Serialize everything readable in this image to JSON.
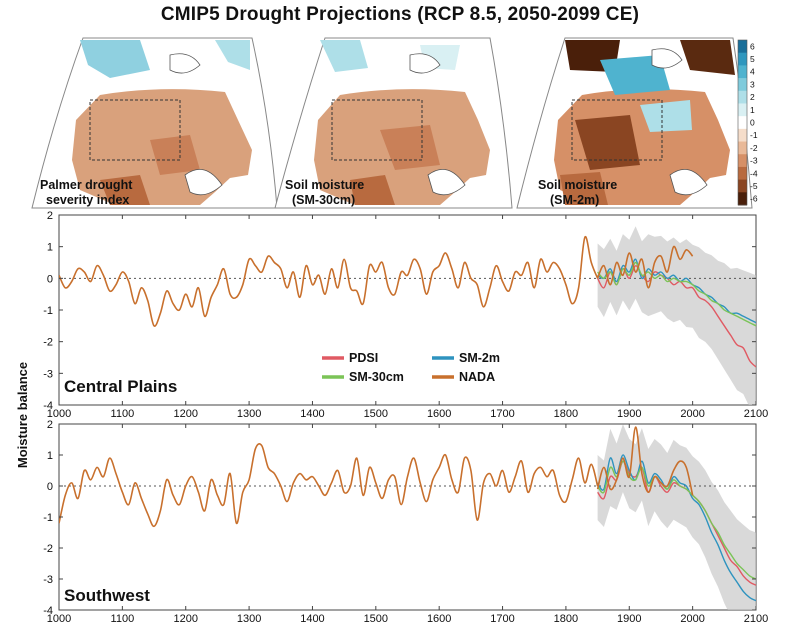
{
  "figure": {
    "title": "CMIP5 Drought Projections (RCP 8.5, 2050-2099 CE)"
  },
  "maps": {
    "panels": [
      {
        "label_line1": "Palmer drought",
        "label_line2": "severity index"
      },
      {
        "label_line1": "Soil moisture",
        "label_line2": "(SM-30cm)"
      },
      {
        "label_line1": "Soil moisture",
        "label_line2": "(SM-2m)"
      }
    ],
    "colorbar": {
      "ticks": [
        "6",
        "5",
        "4",
        "3",
        "2",
        "1",
        "0",
        "-1",
        "-2",
        "-3",
        "-4",
        "-5",
        "-6"
      ],
      "colors": [
        "#1a6f9a",
        "#2f97be",
        "#4fb3cf",
        "#7fcbdc",
        "#aedfe8",
        "#d9f0f3",
        "#ffffff",
        "#f5ddca",
        "#e9b998",
        "#d69067",
        "#b86a3f",
        "#8a4522",
        "#4a1f0a"
      ]
    }
  },
  "chart_data": [
    {
      "type": "line",
      "region_label": "Central Plains",
      "ylabel": "Moisture balance",
      "xlim": [
        1000,
        2100
      ],
      "ylim": [
        -4,
        2
      ],
      "xticks": [
        "1000",
        "1100",
        "1200",
        "1300",
        "1400",
        "1500",
        "1600",
        "1700",
        "1800",
        "1900",
        "2000",
        "2100"
      ],
      "yticks": [
        "2",
        "1",
        "0",
        "-1",
        "-2",
        "-3",
        "-4"
      ],
      "series": [
        {
          "name": "NADA",
          "color": "#c8702d",
          "x": [
            1000,
            1010,
            1020,
            1030,
            1040,
            1050,
            1060,
            1070,
            1080,
            1090,
            1100,
            1110,
            1120,
            1130,
            1140,
            1150,
            1160,
            1170,
            1180,
            1190,
            1200,
            1210,
            1220,
            1230,
            1240,
            1250,
            1260,
            1270,
            1280,
            1290,
            1300,
            1310,
            1320,
            1330,
            1340,
            1350,
            1360,
            1370,
            1380,
            1390,
            1400,
            1410,
            1420,
            1430,
            1440,
            1450,
            1460,
            1470,
            1480,
            1490,
            1500,
            1510,
            1520,
            1530,
            1540,
            1550,
            1560,
            1570,
            1580,
            1590,
            1600,
            1610,
            1620,
            1630,
            1640,
            1650,
            1660,
            1670,
            1680,
            1690,
            1700,
            1710,
            1720,
            1730,
            1740,
            1750,
            1760,
            1770,
            1780,
            1790,
            1800,
            1810,
            1820,
            1830,
            1840,
            1850
          ],
          "y": [
            0.1,
            -0.3,
            -0.1,
            0.3,
            0.2,
            -0.1,
            0.4,
            0.1,
            -0.4,
            -0.2,
            0.2,
            -0.1,
            -0.8,
            -0.3,
            -0.7,
            -1.5,
            -1.1,
            -0.4,
            -0.8,
            -1.0,
            -0.5,
            -0.9,
            -0.3,
            -1.2,
            -0.6,
            -0.2,
            0.3,
            -0.5,
            -0.6,
            -0.2,
            0.6,
            0.4,
            0.2,
            0.7,
            0.5,
            0.3,
            -0.3,
            0.2,
            -0.6,
            0.4,
            -0.2,
            0.1,
            -0.5,
            0.3,
            -0.3,
            0.6,
            -0.3,
            -0.4,
            -0.8,
            0.4,
            0.2,
            0.5,
            -0.3,
            -0.5,
            0.2,
            0.1,
            0.6,
            0.3,
            -0.5,
            0.2,
            0.4,
            0.8,
            0.3,
            -0.3,
            0.5,
            0.0,
            -0.2,
            -0.9,
            -0.3,
            0.4,
            -0.1,
            -0.4,
            0.2,
            0.1,
            0.5,
            -0.3,
            0.6,
            0.2,
            0.5,
            0.3,
            -0.2,
            -0.8,
            -0.3,
            1.3,
            0.5,
            0.0
          ]
        },
        {
          "name": "NADA (1850-2005)",
          "color": "#c8702d",
          "x": [
            1850,
            1860,
            1870,
            1880,
            1890,
            1900,
            1910,
            1920,
            1930,
            1940,
            1950,
            1960,
            1970,
            1980,
            1990,
            2000
          ],
          "y": [
            0.0,
            0.4,
            -0.2,
            0.5,
            0.1,
            0.8,
            0.2,
            0.6,
            -0.3,
            0.5,
            0.7,
            0.2,
            1.0,
            0.6,
            0.9,
            0.7
          ]
        },
        {
          "name": "PDSI",
          "color": "#e05a63",
          "x": [
            1850,
            1860,
            1870,
            1880,
            1890,
            1900,
            1910,
            1920,
            1930,
            1940,
            1950,
            1960,
            1970,
            1980,
            1990,
            2000,
            2010,
            2020,
            2030,
            2040,
            2050,
            2060,
            2070,
            2080,
            2090,
            2100
          ],
          "y": [
            0.0,
            -0.3,
            0.2,
            -0.2,
            0.3,
            0.0,
            0.4,
            0.1,
            -0.1,
            0.2,
            0.1,
            0.0,
            -0.2,
            -0.1,
            -0.3,
            -0.3,
            -0.6,
            -0.7,
            -0.9,
            -1.2,
            -1.5,
            -1.8,
            -2.1,
            -2.2,
            -2.6,
            -2.8
          ]
        },
        {
          "name": "SM-2m",
          "color": "#2e93bf",
          "x": [
            1850,
            1860,
            1870,
            1880,
            1890,
            1900,
            1910,
            1920,
            1930,
            1940,
            1950,
            1960,
            1970,
            1980,
            1990,
            2000,
            2010,
            2020,
            2030,
            2040,
            2050,
            2060,
            2070,
            2080,
            2090,
            2100
          ],
          "y": [
            0.1,
            0.0,
            0.3,
            -0.1,
            0.4,
            0.2,
            0.6,
            0.0,
            0.3,
            0.1,
            0.2,
            0.0,
            0.1,
            -0.1,
            0.0,
            -0.2,
            -0.3,
            -0.5,
            -0.6,
            -0.8,
            -0.9,
            -1.1,
            -1.1,
            -1.2,
            -1.3,
            -1.4
          ]
        },
        {
          "name": "SM-30cm",
          "color": "#7bc457",
          "x": [
            1850,
            1860,
            1870,
            1880,
            1890,
            1900,
            1910,
            1920,
            1930,
            1940,
            1950,
            1960,
            1970,
            1980,
            1990,
            2000,
            2010,
            2020,
            2030,
            2040,
            2050,
            2060,
            2070,
            2080,
            2090,
            2100
          ],
          "y": [
            0.2,
            0.0,
            0.2,
            -0.2,
            0.3,
            0.1,
            0.5,
            0.1,
            0.2,
            0.0,
            0.1,
            -0.1,
            0.0,
            -0.1,
            -0.1,
            -0.2,
            -0.4,
            -0.5,
            -0.7,
            -0.8,
            -1.0,
            -1.1,
            -1.2,
            -1.3,
            -1.4,
            -1.5
          ]
        }
      ],
      "legend": [
        {
          "name": "PDSI",
          "color": "#e05a63"
        },
        {
          "name": "SM-2m",
          "color": "#2e93bf"
        },
        {
          "name": "SM-30cm",
          "color": "#7bc457"
        },
        {
          "name": "NADA",
          "color": "#c8702d"
        }
      ]
    },
    {
      "type": "line",
      "region_label": "Southwest",
      "xlim": [
        1000,
        2100
      ],
      "ylim": [
        -4,
        2
      ],
      "xticks": [
        "1000",
        "1100",
        "1200",
        "1300",
        "1400",
        "1500",
        "1600",
        "1700",
        "1800",
        "1900",
        "2000",
        "2100"
      ],
      "yticks": [
        "2",
        "1",
        "0",
        "-1",
        "-2",
        "-3",
        "-4"
      ],
      "series": [
        {
          "name": "NADA",
          "color": "#c8702d",
          "x": [
            1000,
            1010,
            1020,
            1030,
            1040,
            1050,
            1060,
            1070,
            1080,
            1090,
            1100,
            1110,
            1120,
            1130,
            1140,
            1150,
            1160,
            1170,
            1180,
            1190,
            1200,
            1210,
            1220,
            1230,
            1240,
            1250,
            1260,
            1270,
            1280,
            1290,
            1300,
            1310,
            1320,
            1330,
            1340,
            1350,
            1360,
            1370,
            1380,
            1390,
            1400,
            1410,
            1420,
            1430,
            1440,
            1450,
            1460,
            1470,
            1480,
            1490,
            1500,
            1510,
            1520,
            1530,
            1540,
            1550,
            1560,
            1570,
            1580,
            1590,
            1600,
            1610,
            1620,
            1630,
            1640,
            1650,
            1660,
            1670,
            1680,
            1690,
            1700,
            1710,
            1720,
            1730,
            1740,
            1750,
            1760,
            1770,
            1780,
            1790,
            1800,
            1810,
            1820,
            1830,
            1840,
            1850
          ],
          "y": [
            -1.2,
            -0.3,
            0.1,
            -0.4,
            0.5,
            0.2,
            0.6,
            0.3,
            0.9,
            0.4,
            -0.2,
            -0.6,
            0.1,
            -0.4,
            -0.9,
            -1.3,
            -0.8,
            0.2,
            -0.3,
            -0.6,
            0.0,
            0.3,
            -0.2,
            -0.8,
            0.2,
            -0.3,
            -0.6,
            0.4,
            -1.2,
            -0.2,
            0.2,
            1.2,
            1.3,
            0.6,
            0.4,
            0.0,
            -0.5,
            0.1,
            0.4,
            0.2,
            0.3,
            0.0,
            -0.3,
            0.1,
            0.5,
            -0.2,
            0.0,
            0.9,
            -0.3,
            0.6,
            0.1,
            -0.4,
            0.2,
            0.3,
            -0.6,
            0.3,
            0.9,
            0.1,
            -0.5,
            0.2,
            0.6,
            1.0,
            0.2,
            -0.2,
            0.9,
            0.5,
            -1.1,
            0.1,
            0.4,
            0.0,
            0.5,
            -0.2,
            0.3,
            0.8,
            -0.2,
            0.4,
            0.6,
            0.3,
            0.5,
            -0.3,
            -0.5,
            0.2,
            0.9,
            0.1,
            0.7,
            0.0
          ]
        },
        {
          "name": "NADA (1850-2005)",
          "color": "#c8702d",
          "x": [
            1850,
            1860,
            1870,
            1880,
            1890,
            1900,
            1910,
            1920,
            1930,
            1940,
            1950,
            1960,
            1970,
            1980,
            1990,
            2000
          ],
          "y": [
            -0.1,
            0.6,
            -0.1,
            0.2,
            0.9,
            0.3,
            1.9,
            0.4,
            -0.2,
            0.3,
            0.1,
            0.0,
            0.5,
            0.8,
            0.6,
            -0.3
          ]
        },
        {
          "name": "PDSI",
          "color": "#e05a63",
          "x": [
            1850,
            1860,
            1870,
            1880,
            1890,
            1900,
            1910,
            1920,
            1930,
            1940,
            1950,
            1960,
            1970,
            1980,
            1990,
            2000,
            2010,
            2020,
            2030,
            2040,
            2050,
            2060,
            2070,
            2080,
            2090,
            2100
          ],
          "y": [
            -0.2,
            -0.4,
            0.3,
            0.2,
            0.8,
            0.4,
            0.3,
            0.6,
            -0.2,
            0.3,
            0.0,
            -0.2,
            0.1,
            0.0,
            -0.1,
            -0.3,
            -0.5,
            -0.8,
            -1.2,
            -1.6,
            -2.0,
            -2.4,
            -2.6,
            -2.9,
            -3.1,
            -3.2
          ]
        },
        {
          "name": "SM-2m",
          "color": "#2e93bf",
          "x": [
            1850,
            1860,
            1870,
            1880,
            1890,
            1900,
            1910,
            1920,
            1930,
            1940,
            1950,
            1960,
            1970,
            1980,
            1990,
            2000,
            2010,
            2020,
            2030,
            2040,
            2050,
            2060,
            2070,
            2080,
            2090,
            2100
          ],
          "y": [
            0.1,
            -0.1,
            0.9,
            0.4,
            1.0,
            0.5,
            0.2,
            0.8,
            0.1,
            0.4,
            0.2,
            -0.1,
            0.3,
            0.1,
            0.0,
            -0.4,
            -0.6,
            -1.0,
            -1.5,
            -1.9,
            -2.4,
            -2.8,
            -3.1,
            -3.4,
            -3.6,
            -3.7
          ]
        },
        {
          "name": "SM-30cm",
          "color": "#7bc457",
          "x": [
            1850,
            1860,
            1870,
            1880,
            1890,
            1900,
            1910,
            1920,
            1930,
            1940,
            1950,
            1960,
            1970,
            1980,
            1990,
            2000,
            2010,
            2020,
            2030,
            2040,
            2050,
            2060,
            2070,
            2080,
            2090,
            2100
          ],
          "y": [
            0.0,
            -0.2,
            0.6,
            0.3,
            0.8,
            0.3,
            0.2,
            0.6,
            0.0,
            0.3,
            0.1,
            -0.1,
            0.2,
            0.0,
            -0.1,
            -0.3,
            -0.5,
            -0.8,
            -1.2,
            -1.5,
            -1.9,
            -2.2,
            -2.5,
            -2.7,
            -2.9,
            -3.0
          ]
        }
      ]
    }
  ]
}
